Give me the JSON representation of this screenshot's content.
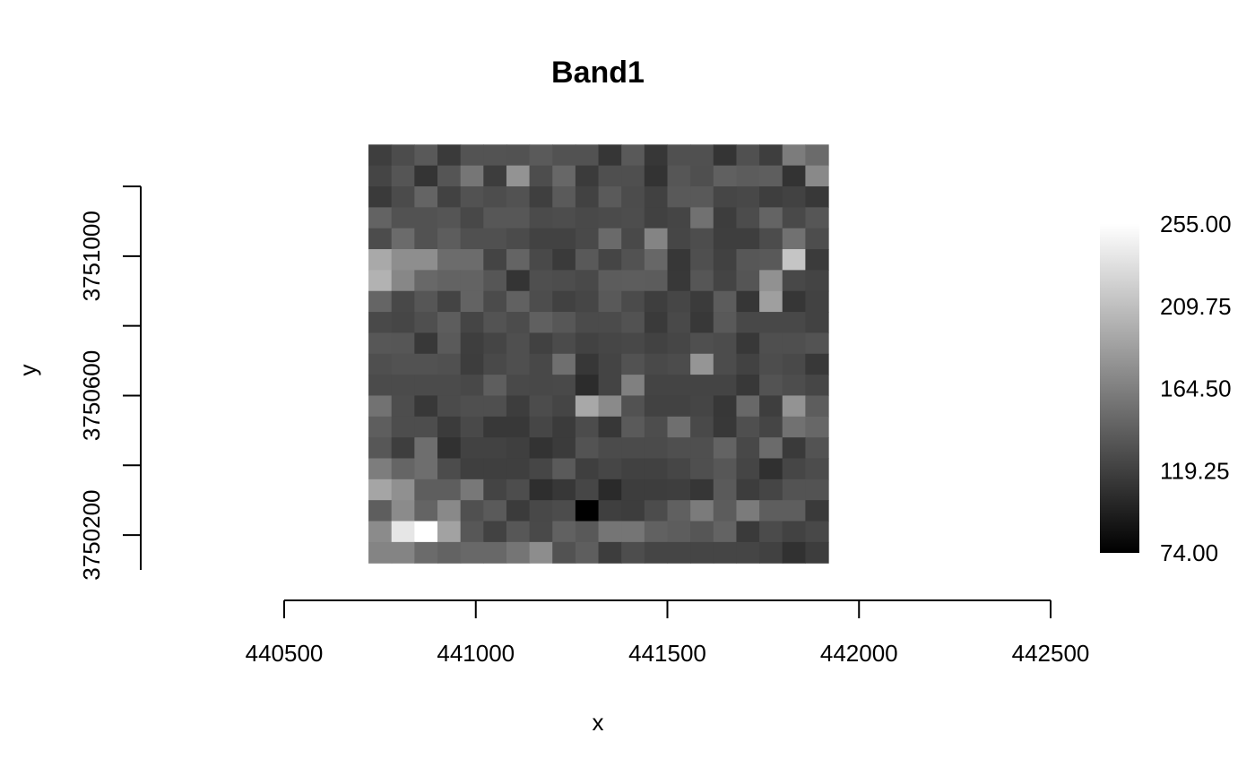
{
  "chart_data": {
    "type": "heatmap",
    "title": "Band1",
    "xlabel": "x",
    "ylabel": "y",
    "x_axis_range": [
      440500,
      442500
    ],
    "y_axis_range": [
      3750100,
      3751200
    ],
    "x_ticks": [
      440500,
      441000,
      441500,
      442000,
      442500
    ],
    "x_tick_labels": [
      "440500",
      "441000",
      "441500",
      "442000",
      "442500"
    ],
    "y_ticks": [
      3750200,
      3750400,
      3750600,
      3750800,
      3751000,
      3751200
    ],
    "y_tick_labels": [
      "3750200",
      "",
      "3750600",
      "",
      "3751000",
      ""
    ],
    "raster_extent": {
      "xmin": 440720,
      "xmax": 441920,
      "ymin": 3750120,
      "ymax": 3751320
    },
    "nrows": 20,
    "ncols": 20,
    "colorscale": "gray",
    "color_min_hex": "#000000",
    "color_max_hex": "#ffffff",
    "legend": {
      "position": "right",
      "min": 74.0,
      "max": 255.0,
      "ticks": [
        74.0,
        119.25,
        164.5,
        209.75,
        255.0
      ],
      "tick_labels": [
        "74.00",
        "119.25",
        "164.50",
        "209.75",
        "255.00"
      ]
    },
    "values": [
      [
        118,
        128,
        137,
        115,
        133,
        133,
        132,
        138,
        132,
        132,
        112,
        137,
        113,
        131,
        131,
        111,
        131,
        118,
        162,
        150
      ],
      [
        123,
        134,
        111,
        134,
        158,
        117,
        178,
        129,
        147,
        116,
        130,
        130,
        110,
        135,
        130,
        142,
        139,
        141,
        110,
        171
      ],
      [
        115,
        127,
        145,
        121,
        132,
        129,
        132,
        119,
        138,
        121,
        138,
        128,
        120,
        137,
        137,
        124,
        125,
        118,
        121,
        114
      ],
      [
        144,
        132,
        132,
        134,
        125,
        136,
        136,
        127,
        129,
        126,
        127,
        129,
        120,
        123,
        154,
        117,
        128,
        145,
        126,
        135
      ],
      [
        128,
        150,
        132,
        140,
        131,
        131,
        127,
        121,
        121,
        126,
        149,
        126,
        168,
        124,
        129,
        118,
        118,
        128,
        154,
        129
      ],
      [
        194,
        175,
        175,
        151,
        151,
        122,
        145,
        126,
        115,
        137,
        123,
        132,
        147,
        113,
        130,
        120,
        136,
        137,
        214,
        116
      ],
      [
        200,
        170,
        148,
        144,
        144,
        135,
        111,
        130,
        129,
        126,
        139,
        140,
        139,
        114,
        135,
        122,
        134,
        177,
        125,
        122
      ],
      [
        146,
        125,
        135,
        122,
        144,
        127,
        143,
        129,
        120,
        124,
        137,
        127,
        118,
        124,
        116,
        139,
        112,
        187,
        112,
        121
      ],
      [
        126,
        124,
        130,
        140,
        123,
        133,
        128,
        142,
        136,
        127,
        127,
        132,
        115,
        126,
        114,
        137,
        125,
        125,
        125,
        121
      ],
      [
        136,
        135,
        114,
        138,
        118,
        123,
        130,
        120,
        127,
        121,
        124,
        125,
        121,
        124,
        130,
        128,
        114,
        130,
        130,
        133
      ],
      [
        130,
        132,
        132,
        131,
        117,
        126,
        130,
        125,
        153,
        113,
        122,
        132,
        126,
        128,
        180,
        128,
        121,
        129,
        126,
        114
      ],
      [
        127,
        127,
        127,
        127,
        125,
        141,
        126,
        125,
        126,
        105,
        122,
        165,
        122,
        122,
        122,
        122,
        114,
        133,
        129,
        124
      ],
      [
        155,
        129,
        114,
        127,
        130,
        130,
        117,
        128,
        123,
        193,
        172,
        132,
        121,
        121,
        123,
        113,
        148,
        118,
        178,
        140
      ],
      [
        141,
        129,
        129,
        116,
        126,
        114,
        114,
        124,
        116,
        128,
        113,
        138,
        129,
        153,
        126,
        114,
        130,
        123,
        154,
        147
      ],
      [
        136,
        118,
        152,
        109,
        121,
        121,
        119,
        110,
        116,
        133,
        127,
        127,
        127,
        130,
        130,
        144,
        125,
        150,
        115,
        133
      ],
      [
        163,
        146,
        152,
        128,
        119,
        119,
        119,
        124,
        138,
        119,
        124,
        120,
        120,
        124,
        130,
        136,
        123,
        108,
        124,
        128
      ],
      [
        191,
        176,
        141,
        141,
        159,
        122,
        129,
        107,
        113,
        124,
        104,
        117,
        117,
        118,
        112,
        138,
        117,
        123,
        133,
        133
      ],
      [
        141,
        173,
        145,
        171,
        131,
        138,
        116,
        125,
        128,
        74,
        119,
        117,
        128,
        142,
        161,
        139,
        161,
        141,
        141,
        115
      ],
      [
        173,
        237,
        255,
        189,
        136,
        121,
        136,
        126,
        143,
        137,
        157,
        157,
        143,
        140,
        135,
        144,
        115,
        127,
        121,
        125
      ],
      [
        168,
        168,
        150,
        144,
        148,
        148,
        157,
        174,
        132,
        141,
        117,
        129,
        123,
        123,
        123,
        123,
        123,
        120,
        109,
        117
      ]
    ]
  }
}
